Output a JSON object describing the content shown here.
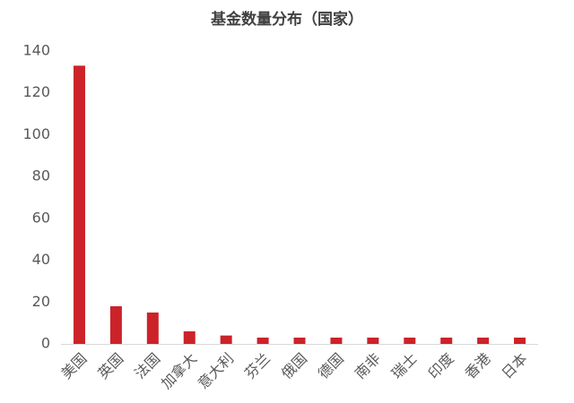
{
  "chart_data": {
    "type": "bar",
    "title": "基金数量分布（国家）",
    "categories": [
      "美国",
      "英国",
      "法国",
      "加拿大",
      "意大利",
      "芬兰",
      "俄国",
      "德国",
      "南非",
      "瑞士",
      "印度",
      "香港",
      "日本"
    ],
    "values": [
      133,
      18,
      15,
      6,
      4,
      3,
      3,
      3,
      3,
      3,
      3,
      3,
      3
    ],
    "color": "#cc2229",
    "ylim": [
      0,
      140
    ],
    "yticks": [
      0,
      20,
      40,
      60,
      80,
      100,
      120,
      140
    ],
    "grid": false
  }
}
